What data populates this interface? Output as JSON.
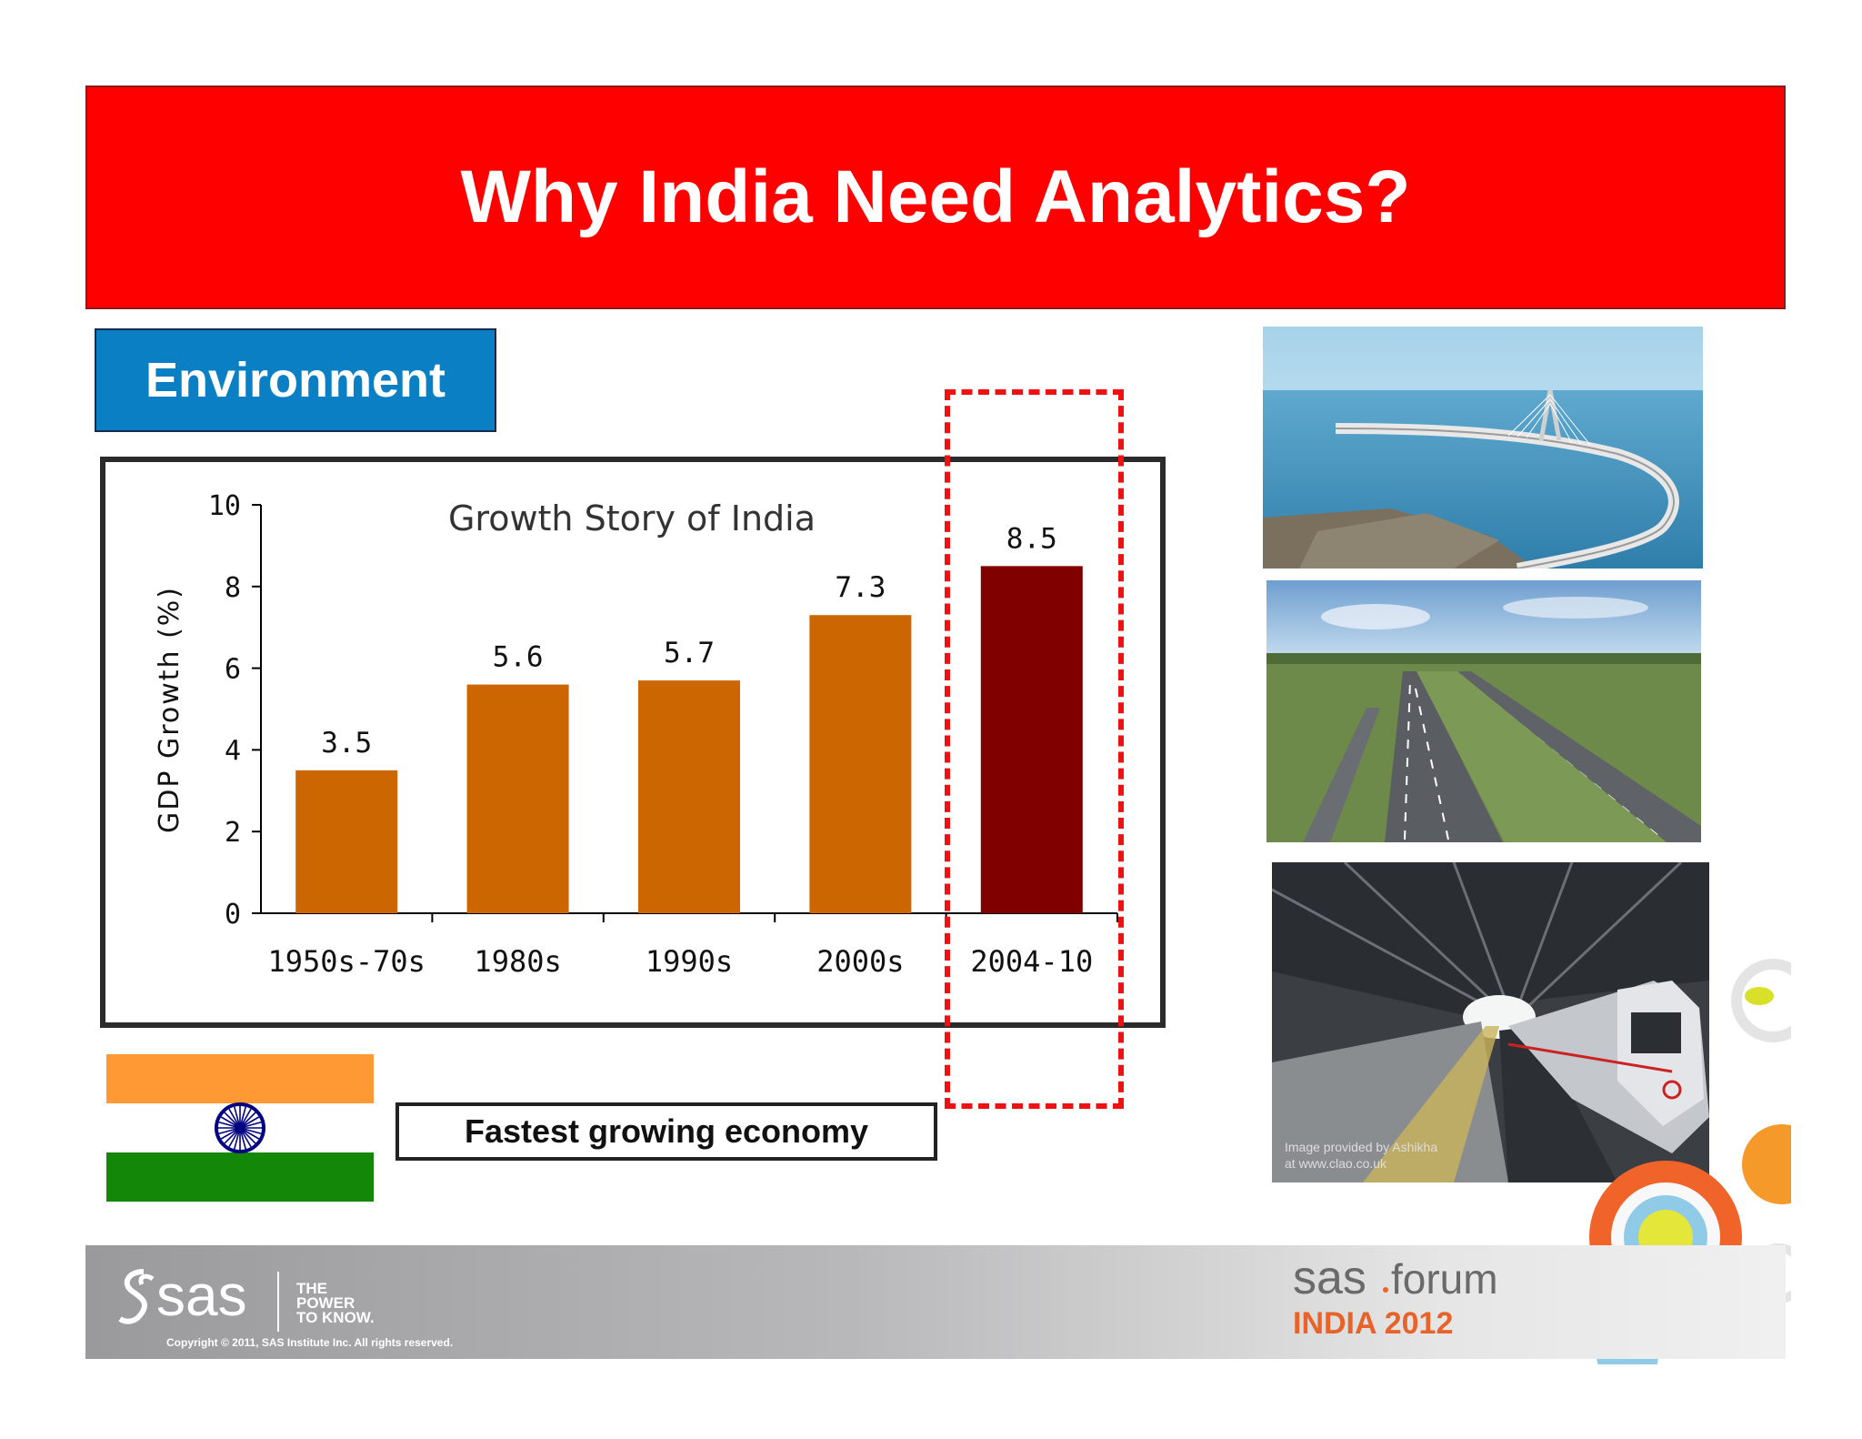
{
  "slide": {
    "title": "Why India Need Analytics?",
    "section_label": "Environment",
    "caption": "Fastest growing economy",
    "colors": {
      "title_bg": "#ff0000",
      "section_bg": "#0a7fc4",
      "bar": "#cc6600",
      "bar_highlight": "#800000",
      "highlight_border": "#ee1111"
    }
  },
  "chart_data": {
    "type": "bar",
    "title": "Growth Story of India",
    "ylabel": "GDP Growth (%)",
    "xlabel": "",
    "categories": [
      "1950s-70s",
      "1980s",
      "1990s",
      "2000s",
      "2004-10"
    ],
    "values": [
      3.5,
      5.6,
      5.7,
      7.3,
      8.5
    ],
    "data_labels": [
      "3.5",
      "5.6",
      "5.7",
      "7.3",
      "8.5"
    ],
    "highlighted_category": "2004-10",
    "ylim": [
      0,
      10
    ],
    "yticks": [
      "0",
      "2",
      "4",
      "6",
      "8",
      "10"
    ],
    "grid": false,
    "legend": "none"
  },
  "photos": {
    "bridge_alt": "bridge-photo",
    "road_alt": "highway-photo",
    "metro_alt": "metro-photo",
    "metro_credit_1": "Image provided by Ashikha",
    "metro_credit_2": "at www.clao.co.uk"
  },
  "footer": {
    "sas_logo_text": "sas",
    "tagline_1": "THE",
    "tagline_2": "POWER",
    "tagline_3": "TO KNOW.",
    "copyright": "Copyright © 2011, SAS Institute Inc. All rights reserved.",
    "forum_1": "sas",
    "forum_2": "forum",
    "forum_3": "INDIA 2012"
  }
}
